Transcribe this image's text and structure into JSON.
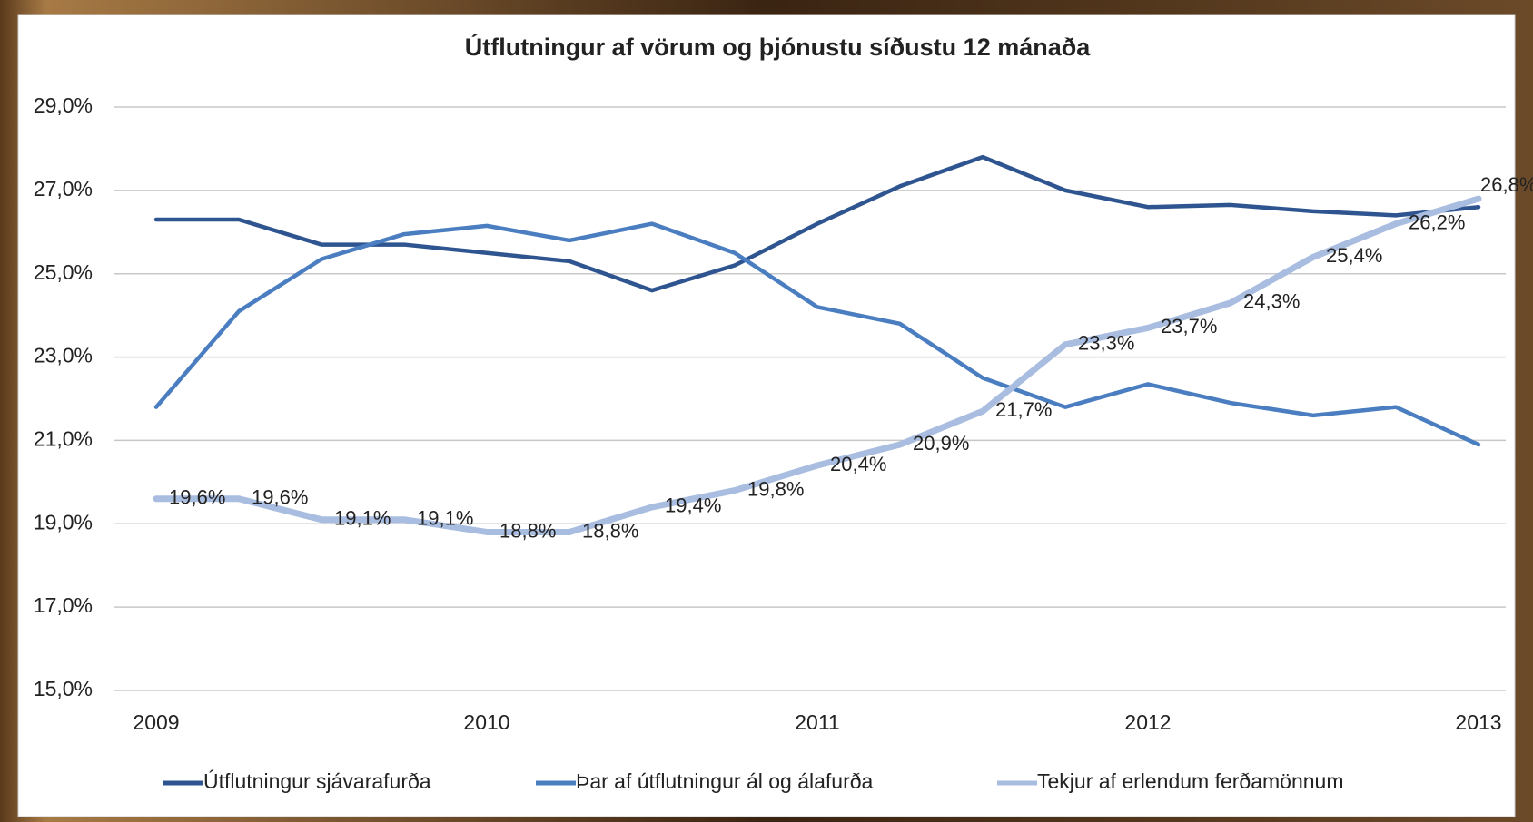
{
  "chart_data": {
    "type": "line",
    "title": "Útflutningur af vörum og þjónustu síðustu 12 mánaða",
    "categories": [
      "2009",
      null,
      null,
      null,
      "2010",
      null,
      null,
      null,
      "2011",
      null,
      null,
      null,
      "2012",
      null,
      null,
      null,
      "2013"
    ],
    "ylim": [
      15,
      29
    ],
    "yticks": [
      {
        "value": 15,
        "label": "15,0%"
      },
      {
        "value": 17,
        "label": "17,0%"
      },
      {
        "value": 19,
        "label": "19,0%"
      },
      {
        "value": 21,
        "label": "21,0%"
      },
      {
        "value": 23,
        "label": "23,0%"
      },
      {
        "value": 25,
        "label": "25,0%"
      },
      {
        "value": 27,
        "label": "27,0%"
      },
      {
        "value": 29,
        "label": "29,0%"
      }
    ],
    "grid": true,
    "legend": "bottom",
    "series": [
      {
        "name": "Útflutningur sjávarafurða",
        "color": "#2f5590",
        "values": [
          26.3,
          26.3,
          25.7,
          25.7,
          25.5,
          25.3,
          24.6,
          25.2,
          26.2,
          27.1,
          27.8,
          27.0,
          26.6,
          26.65,
          26.5,
          26.4,
          26.6
        ]
      },
      {
        "name": "Þar af útflutningur ál og álafurða",
        "color": "#4a7ec0",
        "values": [
          21.8,
          24.1,
          25.35,
          25.95,
          26.15,
          25.8,
          26.2,
          25.5,
          24.2,
          23.8,
          22.5,
          21.8,
          22.35,
          21.9,
          21.6,
          21.8,
          20.9
        ]
      },
      {
        "name": "Tekjur af erlendum ferðamönnum",
        "color": "#a9bde0",
        "values": [
          19.6,
          19.6,
          19.1,
          19.1,
          18.8,
          18.8,
          19.4,
          19.8,
          20.4,
          20.9,
          21.7,
          23.3,
          23.7,
          24.3,
          25.4,
          26.2,
          26.8
        ],
        "value_labels": [
          "19,6%",
          "19,6%",
          "19,1%",
          "19,1%",
          "18,8%",
          "18,8%",
          "19,4%",
          "19,8%",
          "20,4%",
          "20,9%",
          "21,7%",
          "23,3%",
          "23,7%",
          "24,3%",
          "25,4%",
          "26,2%",
          "26,8%"
        ]
      }
    ]
  }
}
